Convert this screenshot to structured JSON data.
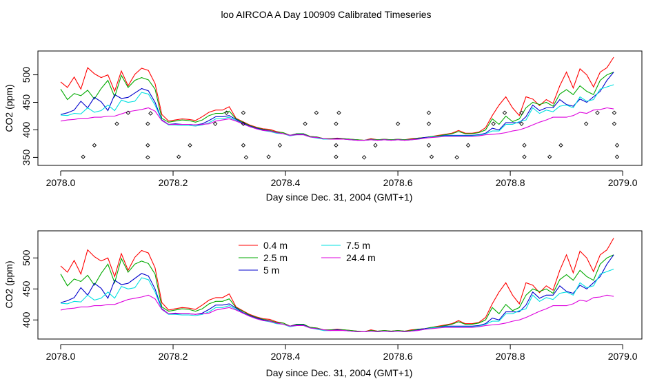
{
  "title": "loo AIRCOA A  Day 100909  Calibrated Timeseries",
  "chart_data": [
    {
      "type": "line",
      "xlabel": "Day since Dec. 31, 2004 (GMT+1)",
      "ylabel": "CO2 (ppm)",
      "xlim": [
        1.0,
        1.99
      ],
      "ylim": [
        343,
        537
      ],
      "x_ticks": [
        1.0,
        1.2,
        1.4,
        1.6,
        1.8,
        2.0
      ],
      "x_tick_labels": [
        "2078.0",
        "2078.2",
        "2078.4",
        "2078.6",
        "2078.8",
        "2079.0"
      ],
      "y_ticks": [
        350,
        400,
        450,
        500
      ],
      "y_tick_labels": [
        "350",
        "400",
        "450",
        "500"
      ],
      "legend": false,
      "grid": false,
      "markers": {
        "name": "",
        "color": "#000000",
        "shape": "open-diamond",
        "points": [
          [
            1.04,
            351
          ],
          [
            1.06,
            372
          ],
          [
            1.1,
            411
          ],
          [
            1.12,
            431
          ],
          [
            1.155,
            411
          ],
          [
            1.155,
            372
          ],
          [
            1.155,
            350
          ],
          [
            1.16,
            430
          ],
          [
            1.21,
            351
          ],
          [
            1.23,
            372
          ],
          [
            1.275,
            411
          ],
          [
            1.295,
            431
          ],
          [
            1.325,
            431
          ],
          [
            1.325,
            411
          ],
          [
            1.325,
            372
          ],
          [
            1.33,
            350
          ],
          [
            1.37,
            351
          ],
          [
            1.39,
            372
          ],
          [
            1.435,
            411
          ],
          [
            1.455,
            431
          ],
          [
            1.49,
            411
          ],
          [
            1.49,
            372
          ],
          [
            1.49,
            351
          ],
          [
            1.495,
            431
          ],
          [
            1.54,
            350
          ],
          [
            1.56,
            372
          ],
          [
            1.6,
            411
          ],
          [
            1.655,
            431
          ],
          [
            1.655,
            411
          ],
          [
            1.655,
            372
          ],
          [
            1.66,
            351
          ],
          [
            1.705,
            350
          ],
          [
            1.725,
            372
          ],
          [
            1.77,
            411
          ],
          [
            1.79,
            431
          ],
          [
            1.82,
            431
          ],
          [
            1.82,
            411
          ],
          [
            1.825,
            372
          ],
          [
            1.825,
            351
          ],
          [
            1.87,
            351
          ],
          [
            1.89,
            372
          ],
          [
            1.935,
            411
          ],
          [
            1.955,
            431
          ],
          [
            1.985,
            431
          ],
          [
            1.985,
            411
          ],
          [
            1.99,
            372
          ],
          [
            1.99,
            351
          ]
        ]
      }
    },
    {
      "type": "line",
      "xlabel": "Day since Dec. 31, 2004 (GMT+1)",
      "ylabel": "CO2 (ppm)",
      "xlim": [
        1.0,
        1.99
      ],
      "ylim": [
        377,
        537
      ],
      "x_ticks": [
        1.0,
        1.2,
        1.4,
        1.6,
        1.8,
        2.0
      ],
      "x_tick_labels": [
        "2078.0",
        "2078.2",
        "2078.4",
        "2078.6",
        "2078.8",
        "2079.0"
      ],
      "y_ticks": [
        400,
        450,
        500
      ],
      "y_tick_labels": [
        "400",
        "450",
        "500"
      ],
      "legend": true,
      "legend_position": "top-center",
      "grid": false
    }
  ],
  "shared_series": {
    "x": [
      1.0,
      1.012,
      1.024,
      1.036,
      1.048,
      1.06,
      1.072,
      1.084,
      1.096,
      1.108,
      1.12,
      1.132,
      1.144,
      1.156,
      1.168,
      1.18,
      1.192,
      1.204,
      1.216,
      1.228,
      1.24,
      1.252,
      1.264,
      1.276,
      1.288,
      1.3,
      1.312,
      1.324,
      1.336,
      1.348,
      1.36,
      1.372,
      1.384,
      1.396,
      1.408,
      1.42,
      1.432,
      1.444,
      1.456,
      1.468,
      1.48,
      1.492,
      1.504,
      1.516,
      1.528,
      1.54,
      1.552,
      1.564,
      1.576,
      1.588,
      1.6,
      1.612,
      1.624,
      1.636,
      1.648,
      1.66,
      1.672,
      1.684,
      1.696,
      1.708,
      1.72,
      1.732,
      1.744,
      1.756,
      1.768,
      1.78,
      1.792,
      1.804,
      1.816,
      1.828,
      1.84,
      1.852,
      1.864,
      1.876,
      1.888,
      1.9,
      1.912,
      1.924,
      1.936,
      1.948,
      1.96,
      1.972,
      1.984
    ],
    "series": [
      {
        "name": "0.4 m",
        "color": "#ff0000",
        "values": [
          487,
          477,
          496,
          474,
          513,
          502,
          495,
          500,
          470,
          507,
          480,
          501,
          512,
          508,
          484,
          428,
          416,
          418,
          420,
          419,
          417,
          424,
          432,
          436,
          436,
          442,
          421,
          415,
          409,
          405,
          402,
          401,
          397,
          395,
          390,
          393,
          393,
          388,
          387,
          384,
          384,
          385,
          384,
          383,
          382,
          381,
          384,
          382,
          383,
          382,
          383,
          382,
          384,
          385,
          386,
          388,
          390,
          392,
          394,
          399,
          394,
          394,
          396,
          404,
          426,
          445,
          460,
          440,
          426,
          460,
          456,
          444,
          455,
          448,
          480,
          505,
          476,
          511,
          500,
          478,
          505,
          513,
          532
        ]
      },
      {
        "name": "2.5 m",
        "color": "#00aa00",
        "values": [
          474,
          455,
          466,
          462,
          472,
          456,
          475,
          490,
          460,
          499,
          477,
          490,
          495,
          491,
          474,
          421,
          414,
          416,
          418,
          417,
          414,
          418,
          426,
          430,
          430,
          434,
          420,
          414,
          408,
          404,
          401,
          399,
          396,
          395,
          390,
          393,
          393,
          388,
          387,
          384,
          384,
          384,
          384,
          383,
          382,
          381,
          383,
          382,
          383,
          382,
          383,
          382,
          383,
          385,
          386,
          388,
          389,
          391,
          393,
          397,
          393,
          393,
          395,
          400,
          420,
          410,
          425,
          415,
          420,
          440,
          450,
          446,
          450,
          443,
          465,
          473,
          464,
          480,
          470,
          464,
          490,
          500,
          505
        ]
      },
      {
        "name": "5 m",
        "color": "#0000cc",
        "values": [
          428,
          431,
          436,
          452,
          440,
          459,
          451,
          435,
          464,
          457,
          459,
          467,
          475,
          471,
          450,
          418,
          410,
          411,
          410,
          410,
          409,
          411,
          417,
          424,
          424,
          426,
          419,
          412,
          407,
          403,
          400,
          398,
          395,
          393,
          390,
          392,
          392,
          387,
          386,
          383,
          383,
          384,
          383,
          382,
          381,
          381,
          382,
          381,
          382,
          381,
          382,
          381,
          382,
          384,
          386,
          387,
          388,
          390,
          390,
          390,
          390,
          390,
          391,
          394,
          403,
          400,
          413,
          413,
          413,
          424,
          445,
          435,
          440,
          440,
          455,
          446,
          443,
          456,
          450,
          460,
          470,
          490,
          505
        ]
      },
      {
        "name": "7.5 m",
        "color": "#00e0e0",
        "values": [
          427,
          426,
          430,
          429,
          440,
          432,
          435,
          445,
          435,
          454,
          450,
          452,
          468,
          465,
          445,
          417,
          409,
          409,
          408,
          408,
          407,
          409,
          413,
          420,
          420,
          423,
          417,
          411,
          406,
          402,
          399,
          397,
          394,
          393,
          389,
          391,
          391,
          387,
          385,
          383,
          383,
          383,
          383,
          382,
          381,
          381,
          382,
          381,
          382,
          381,
          382,
          381,
          382,
          383,
          385,
          387,
          388,
          389,
          389,
          389,
          389,
          389,
          390,
          393,
          398,
          398,
          410,
          410,
          415,
          418,
          440,
          430,
          436,
          433,
          443,
          445,
          440,
          460,
          452,
          455,
          474,
          478,
          482
        ]
      },
      {
        "name": "24.4 m",
        "color": "#dd00dd",
        "values": [
          416,
          418,
          419,
          421,
          421,
          423,
          423,
          425,
          425,
          429,
          433,
          435,
          437,
          440,
          434,
          417,
          410,
          410,
          410,
          410,
          409,
          410,
          411,
          416,
          418,
          420,
          416,
          411,
          406,
          402,
          399,
          398,
          395,
          393,
          390,
          391,
          391,
          387,
          386,
          384,
          383,
          383,
          383,
          382,
          381,
          381,
          382,
          381,
          382,
          381,
          382,
          381,
          382,
          383,
          385,
          386,
          387,
          388,
          388,
          388,
          388,
          388,
          389,
          391,
          392,
          393,
          395,
          398,
          400,
          404,
          409,
          414,
          418,
          423,
          423,
          423,
          426,
          432,
          430,
          436,
          437,
          440,
          438
        ]
      }
    ]
  }
}
